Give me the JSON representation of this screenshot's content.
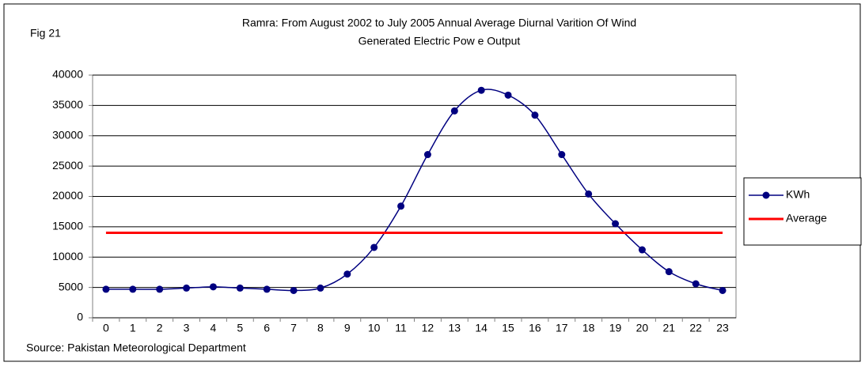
{
  "chart_data": {
    "type": "line",
    "title": [
      "Ramra: From August 2002 to July 2005 Annual Average Diurnal Varition Of Wind",
      "Generated Electric Pow e Output"
    ],
    "figure_label": "Fig 21",
    "source": "Source: Pakistan Meteorological Department",
    "categories": [
      "0",
      "1",
      "2",
      "3",
      "4",
      "5",
      "6",
      "7",
      "8",
      "9",
      "10",
      "11",
      "12",
      "13",
      "14",
      "15",
      "16",
      "17",
      "18",
      "19",
      "20",
      "21",
      "22",
      "23"
    ],
    "series": [
      {
        "name": "KWh",
        "color": "#000080",
        "marker": true,
        "smooth": true,
        "values": [
          4700,
          4700,
          4700,
          4900,
          5100,
          4900,
          4700,
          4500,
          4900,
          7200,
          11600,
          18400,
          26900,
          34100,
          37500,
          36700,
          33400,
          26900,
          20400,
          15500,
          11200,
          7600,
          5600,
          4500
        ]
      },
      {
        "name": "Average",
        "color": "#ff0000",
        "marker": false,
        "smooth": false,
        "values": [
          14000,
          14000,
          14000,
          14000,
          14000,
          14000,
          14000,
          14000,
          14000,
          14000,
          14000,
          14000,
          14000,
          14000,
          14000,
          14000,
          14000,
          14000,
          14000,
          14000,
          14000,
          14000,
          14000,
          14000
        ]
      }
    ],
    "ylim": [
      0,
      40000
    ],
    "yticks": [
      0,
      5000,
      10000,
      15000,
      20000,
      25000,
      30000,
      35000,
      40000
    ],
    "grid": true,
    "legend": "right"
  }
}
